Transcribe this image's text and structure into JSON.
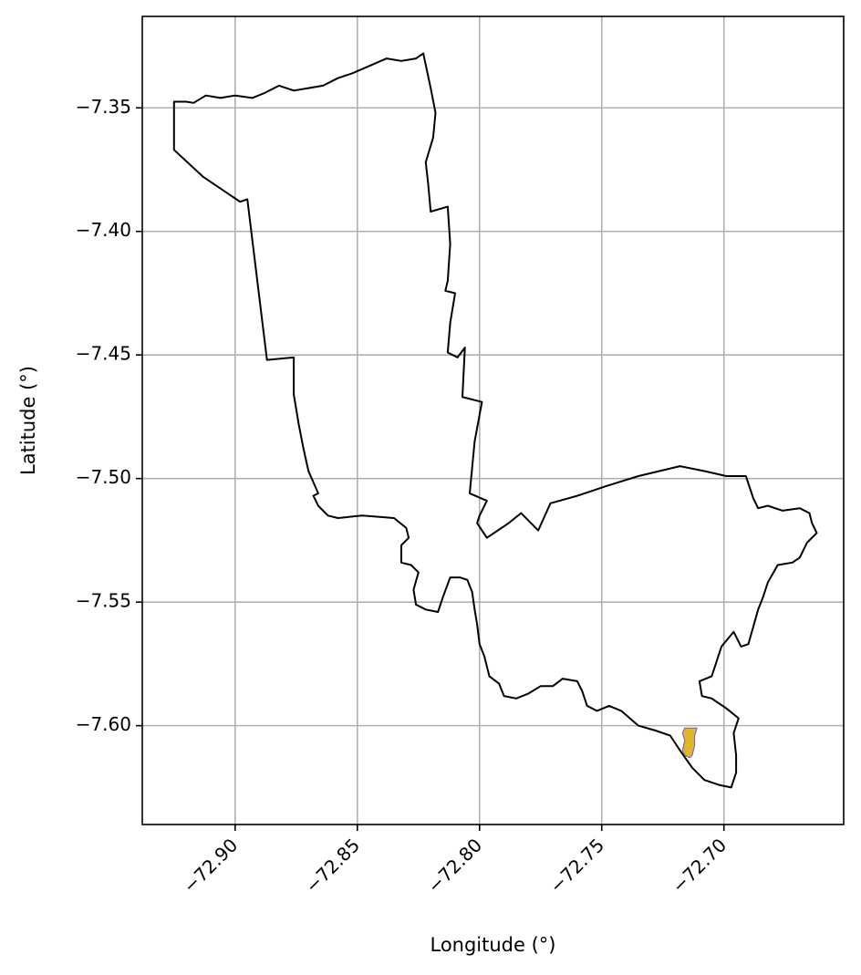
{
  "chart_data": {
    "type": "map",
    "xlabel": "Longitude (°)",
    "ylabel": "Latitude (°)",
    "xlim": [
      -72.938,
      -72.651
    ],
    "ylim": [
      -7.64,
      -7.313
    ],
    "grid": true,
    "x_ticks": [
      -72.9,
      -72.85,
      -72.8,
      -72.75,
      -72.7
    ],
    "x_tick_labels": [
      "−72.90",
      "−72.85",
      "−72.80",
      "−72.75",
      "−72.70"
    ],
    "y_ticks": [
      -7.35,
      -7.4,
      -7.45,
      -7.5,
      -7.55,
      -7.6
    ],
    "y_tick_labels": [
      "−7.35",
      "−7.40",
      "−7.45",
      "−7.50",
      "−7.55",
      "−7.60"
    ],
    "colors": {
      "boundary": "#000000",
      "highlight_fill": "#e1b429",
      "highlight_edge": "#6a5acd",
      "grid": "#b0b0b0"
    },
    "boundary": [
      [
        -72.925,
        -7.3475
      ],
      [
        -72.92,
        -7.3475
      ],
      [
        -72.917,
        -7.348
      ],
      [
        -72.912,
        -7.345
      ],
      [
        -72.906,
        -7.346
      ],
      [
        -72.9,
        -7.345
      ],
      [
        -72.893,
        -7.346
      ],
      [
        -72.888,
        -7.344
      ],
      [
        -72.882,
        -7.341
      ],
      [
        -72.876,
        -7.343
      ],
      [
        -72.87,
        -7.342
      ],
      [
        -72.864,
        -7.341
      ],
      [
        -72.858,
        -7.338
      ],
      [
        -72.852,
        -7.336
      ],
      [
        -72.845,
        -7.333
      ],
      [
        -72.838,
        -7.33
      ],
      [
        -72.832,
        -7.331
      ],
      [
        -72.826,
        -7.33
      ],
      [
        -72.823,
        -7.328
      ],
      [
        -72.82,
        -7.342
      ],
      [
        -72.818,
        -7.352
      ],
      [
        -72.819,
        -7.362
      ],
      [
        -72.822,
        -7.372
      ],
      [
        -72.821,
        -7.381
      ],
      [
        -72.82,
        -7.392
      ],
      [
        -72.813,
        -7.39
      ],
      [
        -72.812,
        -7.405
      ],
      [
        -72.813,
        -7.42
      ],
      [
        -72.814,
        -7.424
      ],
      [
        -72.81,
        -7.425
      ],
      [
        -72.812,
        -7.437
      ],
      [
        -72.813,
        -7.449
      ],
      [
        -72.809,
        -7.451
      ],
      [
        -72.806,
        -7.447
      ],
      [
        -72.807,
        -7.467
      ],
      [
        -72.799,
        -7.469
      ],
      [
        -72.802,
        -7.485
      ],
      [
        -72.804,
        -7.506
      ],
      [
        -72.797,
        -7.509
      ],
      [
        -72.8,
        -7.515
      ],
      [
        -72.801,
        -7.518
      ],
      [
        -72.797,
        -7.524
      ],
      [
        -72.788,
        -7.518
      ],
      [
        -72.783,
        -7.514
      ],
      [
        -72.776,
        -7.521
      ],
      [
        -72.771,
        -7.51
      ],
      [
        -72.76,
        -7.507
      ],
      [
        -72.748,
        -7.503
      ],
      [
        -72.735,
        -7.499
      ],
      [
        -72.718,
        -7.495
      ],
      [
        -72.708,
        -7.497
      ],
      [
        -72.699,
        -7.499
      ],
      [
        -72.691,
        -7.499
      ],
      [
        -72.688,
        -7.508
      ],
      [
        -72.686,
        -7.512
      ],
      [
        -72.682,
        -7.511
      ],
      [
        -72.676,
        -7.513
      ],
      [
        -72.669,
        -7.512
      ],
      [
        -72.665,
        -7.514
      ],
      [
        -72.664,
        -7.518
      ],
      [
        -72.662,
        -7.522
      ],
      [
        -72.666,
        -7.526
      ],
      [
        -72.669,
        -7.532
      ],
      [
        -72.672,
        -7.534
      ],
      [
        -72.678,
        -7.535
      ],
      [
        -72.682,
        -7.542
      ],
      [
        -72.684,
        -7.548
      ],
      [
        -72.686,
        -7.553
      ],
      [
        -72.688,
        -7.56
      ],
      [
        -72.69,
        -7.567
      ],
      [
        -72.693,
        -7.568
      ],
      [
        -72.696,
        -7.562
      ],
      [
        -72.701,
        -7.568
      ],
      [
        -72.703,
        -7.574
      ],
      [
        -72.705,
        -7.58
      ],
      [
        -72.71,
        -7.582
      ],
      [
        -72.709,
        -7.588
      ],
      [
        -72.705,
        -7.589
      ],
      [
        -72.699,
        -7.593
      ],
      [
        -72.694,
        -7.597
      ],
      [
        -72.696,
        -7.603
      ],
      [
        -72.695,
        -7.612
      ],
      [
        -72.695,
        -7.619
      ],
      [
        -72.697,
        -7.625
      ],
      [
        -72.702,
        -7.624
      ],
      [
        -72.708,
        -7.622
      ],
      [
        -72.713,
        -7.617
      ],
      [
        -72.718,
        -7.61
      ],
      [
        -72.722,
        -7.604
      ],
      [
        -72.728,
        -7.602
      ],
      [
        -72.735,
        -7.6
      ],
      [
        -72.742,
        -7.594
      ],
      [
        -72.747,
        -7.592
      ],
      [
        -72.752,
        -7.594
      ],
      [
        -72.756,
        -7.592
      ],
      [
        -72.758,
        -7.586
      ],
      [
        -72.76,
        -7.582
      ],
      [
        -72.766,
        -7.581
      ],
      [
        -72.77,
        -7.584
      ],
      [
        -72.775,
        -7.584
      ],
      [
        -72.78,
        -7.587
      ],
      [
        -72.785,
        -7.589
      ],
      [
        -72.79,
        -7.588
      ],
      [
        -72.792,
        -7.583
      ],
      [
        -72.796,
        -7.58
      ],
      [
        -72.798,
        -7.572
      ],
      [
        -72.8,
        -7.567
      ],
      [
        -72.801,
        -7.559
      ],
      [
        -72.802,
        -7.553
      ],
      [
        -72.803,
        -7.546
      ],
      [
        -72.805,
        -7.541
      ],
      [
        -72.808,
        -7.54
      ],
      [
        -72.812,
        -7.54
      ],
      [
        -72.815,
        -7.548
      ],
      [
        -72.817,
        -7.554
      ],
      [
        -72.822,
        -7.553
      ],
      [
        -72.826,
        -7.551
      ],
      [
        -72.827,
        -7.545
      ],
      [
        -72.825,
        -7.538
      ],
      [
        -72.828,
        -7.535
      ],
      [
        -72.832,
        -7.534
      ],
      [
        -72.832,
        -7.527
      ],
      [
        -72.829,
        -7.524
      ],
      [
        -72.83,
        -7.52
      ],
      [
        -72.835,
        -7.516
      ],
      [
        -72.848,
        -7.515
      ],
      [
        -72.858,
        -7.516
      ],
      [
        -72.862,
        -7.515
      ],
      [
        -72.866,
        -7.511
      ],
      [
        -72.868,
        -7.507
      ],
      [
        -72.866,
        -7.506
      ],
      [
        -72.87,
        -7.497
      ],
      [
        -72.872,
        -7.488
      ],
      [
        -72.874,
        -7.478
      ],
      [
        -72.876,
        -7.466
      ],
      [
        -72.876,
        -7.451
      ],
      [
        -72.887,
        -7.452
      ],
      [
        -72.895,
        -7.387
      ],
      [
        -72.898,
        -7.388
      ],
      [
        -72.913,
        -7.378
      ],
      [
        -72.925,
        -7.367
      ],
      [
        -72.925,
        -7.3475
      ]
    ],
    "highlight": [
      [
        -72.716,
        -7.601
      ],
      [
        -72.711,
        -7.601
      ],
      [
        -72.712,
        -7.604
      ],
      [
        -72.712,
        -7.608
      ],
      [
        -72.713,
        -7.612
      ],
      [
        -72.714,
        -7.613
      ],
      [
        -72.716,
        -7.612
      ],
      [
        -72.717,
        -7.61
      ],
      [
        -72.716,
        -7.606
      ],
      [
        -72.717,
        -7.603
      ],
      [
        -72.716,
        -7.601
      ]
    ]
  }
}
